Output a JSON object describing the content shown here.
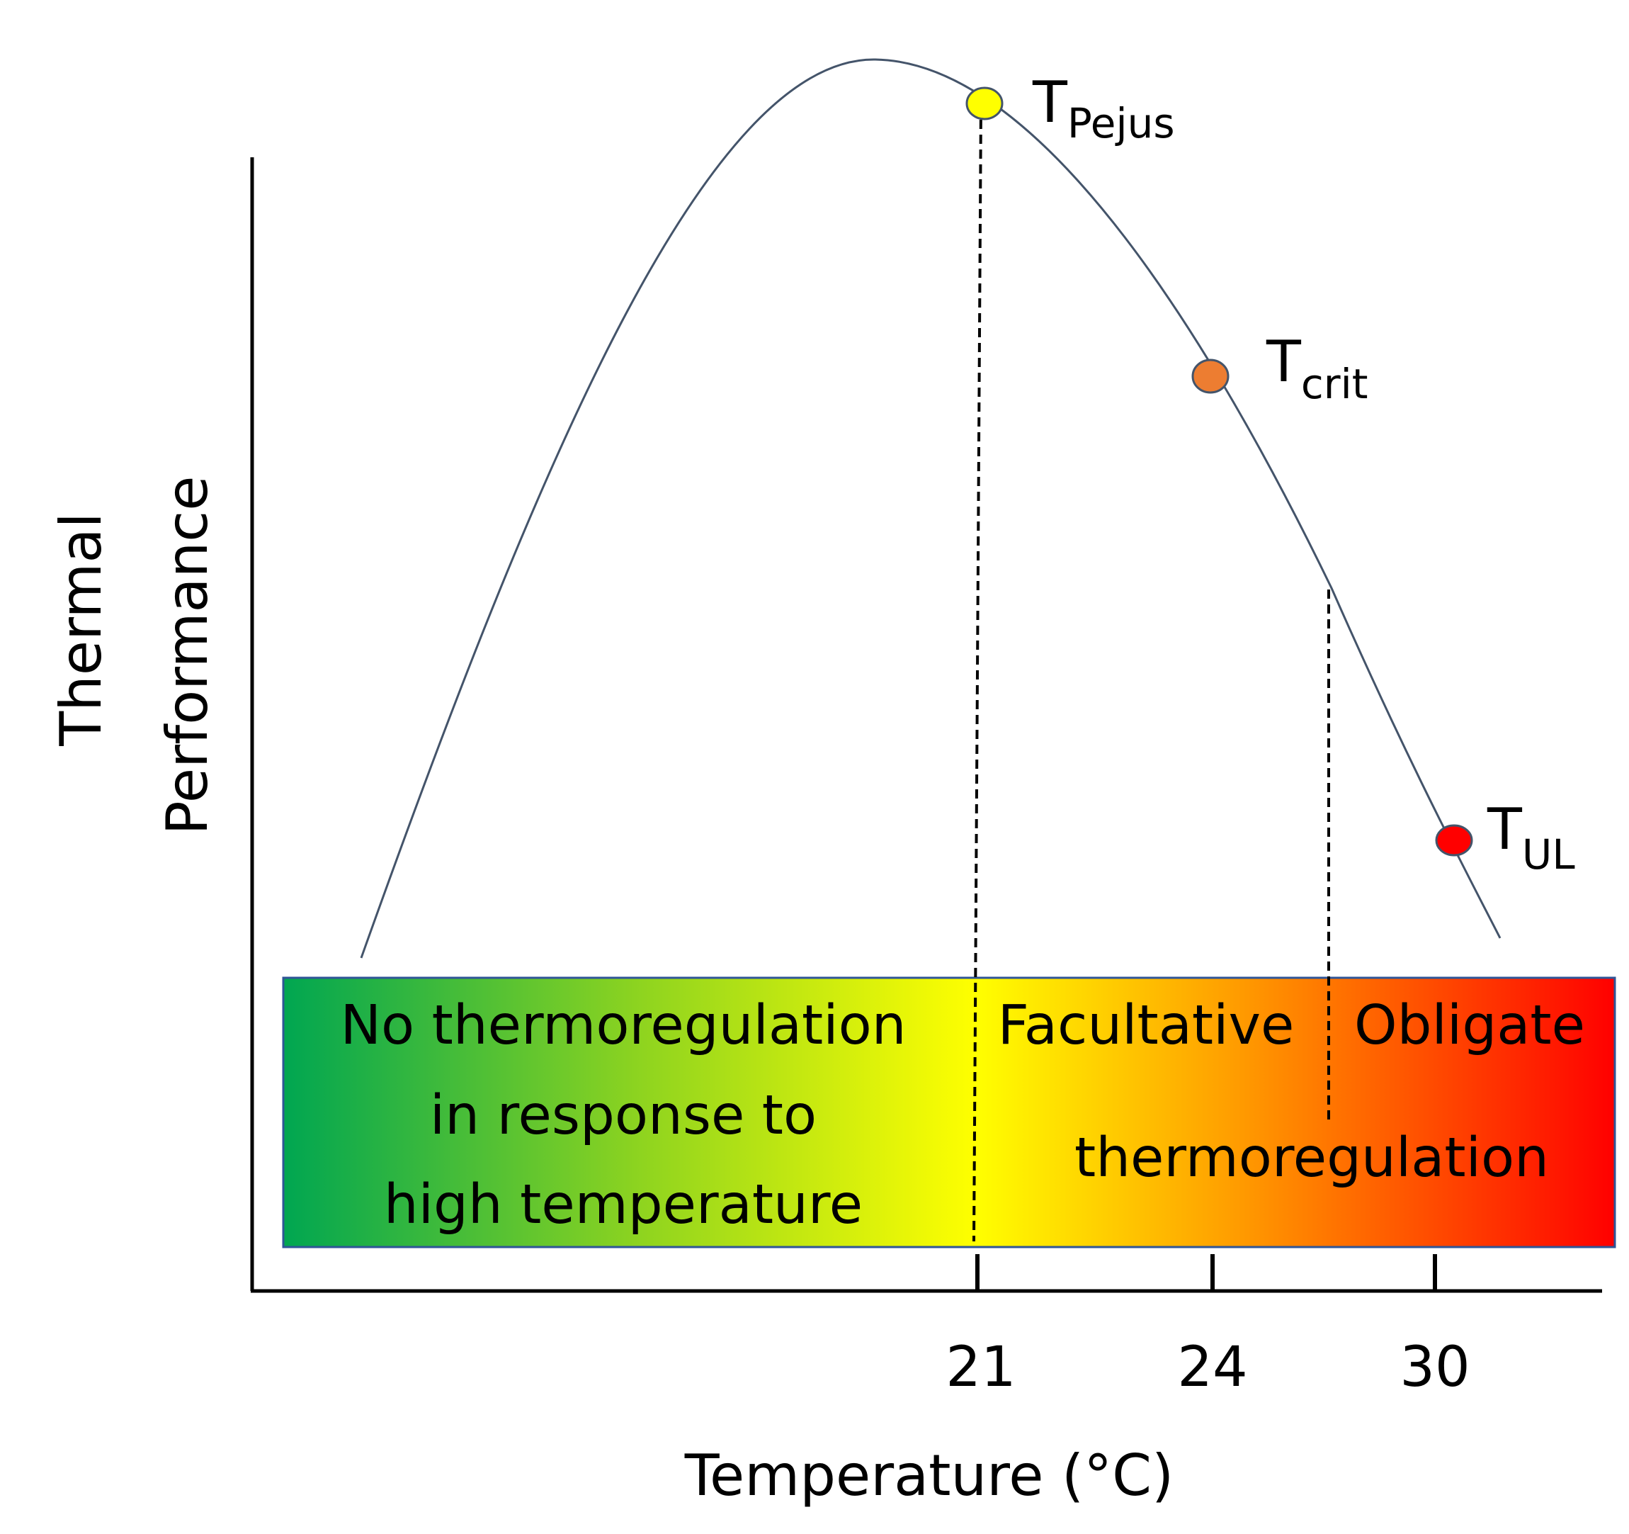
{
  "diagram": {
    "axes": {
      "y_label_line1": "Thermal",
      "y_label_line2": "Performance",
      "x_label": "Temperature (°C)",
      "ticks": [
        "21",
        "24",
        "30"
      ]
    },
    "points": {
      "pejus": {
        "main": "T",
        "sub": "Pejus",
        "color": "#ffff00"
      },
      "crit": {
        "main": "T",
        "sub": "crit",
        "color": "#ed7d31"
      },
      "ul": {
        "main": "T",
        "sub": "UL",
        "color": "#ff0000"
      }
    },
    "zones": {
      "none": {
        "line1": "No thermoregulation",
        "line2": "in response to",
        "line3": "high temperature"
      },
      "facultative": "Facultative",
      "obligate": "Obligate",
      "shared": "thermoregulation"
    },
    "colors": {
      "curve": "#44546a",
      "gradient": [
        "#00a651",
        "#8fd41f",
        "#ffff00",
        "#ff9a00",
        "#ff0000"
      ]
    }
  }
}
